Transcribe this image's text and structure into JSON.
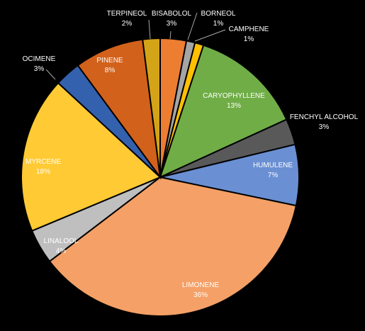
{
  "chart_data": {
    "type": "pie",
    "title": "",
    "slices": [
      {
        "label": "BISABOLOL",
        "value": 3,
        "display": "3%",
        "color": "#ED7D31",
        "inside": false,
        "label_color": "#FFFFFF"
      },
      {
        "label": "BORNEOL",
        "value": 1,
        "display": "1%",
        "color": "#A5A5A5",
        "inside": false,
        "label_color": "#FFFFFF"
      },
      {
        "label": "CAMPHENE",
        "value": 1,
        "display": "1%",
        "color": "#FFC000",
        "inside": false,
        "label_color": "#FFFFFF"
      },
      {
        "label": "CARYOPHYLLENE",
        "value": 13,
        "display": "13%",
        "color": "#70AD47",
        "inside": true,
        "label_color": "#FFFFFF"
      },
      {
        "label": "FENCHYL ALCOHOL",
        "value": 3,
        "display": "3%",
        "color": "#595959",
        "inside": false,
        "label_color": "#FFFFFF"
      },
      {
        "label": "HUMULENE",
        "value": 7,
        "display": "7%",
        "color": "#6A8FD3",
        "inside": true,
        "label_color": "#FFFFFF"
      },
      {
        "label": "LIMONENE",
        "value": 36,
        "display": "36%",
        "color": "#F4A066",
        "inside": true,
        "label_color": "#FFFFFF"
      },
      {
        "label": "LINALOOL",
        "value": 4,
        "display": "4%",
        "color": "#BFBFBF",
        "inside": true,
        "label_color": "#FFFFFF"
      },
      {
        "label": "MYRCENE",
        "value": 18,
        "display": "18%",
        "color": "#FFCA33",
        "inside": true,
        "label_color": "#FFFFFF"
      },
      {
        "label": "OCIMENE",
        "value": 3,
        "display": "3%",
        "color": "#3461AE",
        "inside": false,
        "label_color": "#FFFFFF"
      },
      {
        "label": "PINENE",
        "value": 8,
        "display": "8%",
        "color": "#D2611B",
        "inside": true,
        "label_color": "#FFFFFF"
      },
      {
        "label": "TERPINEOL",
        "value": 2,
        "display": "2%",
        "color": "#D4A418",
        "inside": false,
        "label_color": "#FFFFFF"
      }
    ],
    "start_angle_deg": 0,
    "direction": "clockwise",
    "border_color": "#000000",
    "legend": "none"
  }
}
